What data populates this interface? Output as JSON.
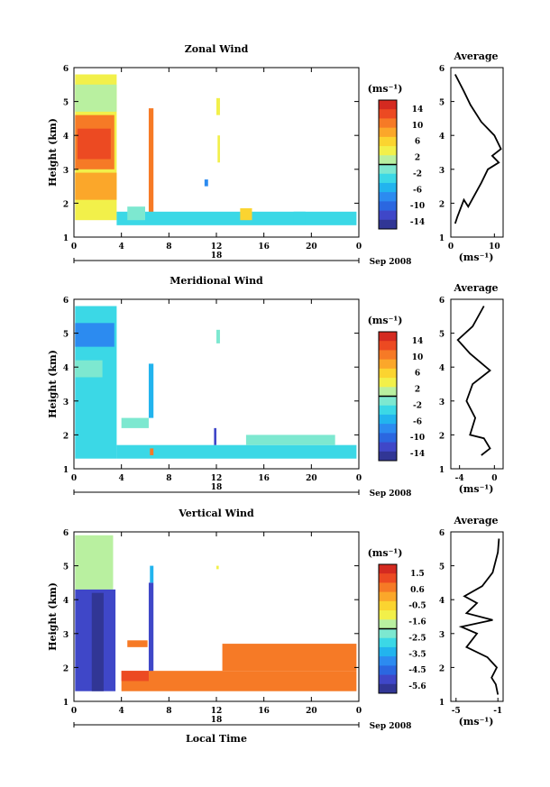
{
  "chart_data": [
    {
      "type": "heatmap",
      "title": "Zonal Wind",
      "ylabel": "Height (km)",
      "xlabel": "",
      "x_ticks": [
        "0",
        "4",
        "8",
        "12",
        "16",
        "20",
        "0"
      ],
      "y_ticks": [
        "1",
        "2",
        "3",
        "4",
        "5",
        "6"
      ],
      "xlim": [
        0,
        24
      ],
      "ylim": [
        1,
        6
      ],
      "date_day": "18",
      "date_label": "Sep 2008",
      "colorbar": {
        "unit": "(ms⁻¹)",
        "ticks": [
          "14",
          "10",
          "6",
          "2",
          "-2",
          "-6",
          "-10",
          "-14"
        ],
        "range": [
          -16,
          16
        ]
      },
      "blocks": [
        {
          "x0": 0.1,
          "x1": 3.6,
          "y0": 1.5,
          "y1": 5.8,
          "v": 4
        },
        {
          "x0": 0.1,
          "x1": 3.4,
          "y0": 3.0,
          "y1": 4.6,
          "v": 11
        },
        {
          "x0": 0.3,
          "x1": 3.1,
          "y0": 3.3,
          "y1": 4.2,
          "v": 13
        },
        {
          "x0": 0.1,
          "x1": 3.6,
          "y0": 2.1,
          "y1": 2.9,
          "v": 7
        },
        {
          "x0": 0.1,
          "x1": 3.6,
          "y0": 4.7,
          "y1": 5.5,
          "v": 2
        },
        {
          "x0": 6.3,
          "x1": 6.7,
          "y0": 1.6,
          "y1": 4.8,
          "v": 10
        },
        {
          "x0": 12.0,
          "x1": 12.3,
          "y0": 4.6,
          "y1": 5.1,
          "v": 3
        },
        {
          "x0": 12.1,
          "x1": 12.3,
          "y0": 3.2,
          "y1": 4.0,
          "v": 4
        },
        {
          "x0": 11.0,
          "x1": 11.3,
          "y0": 2.5,
          "y1": 2.7,
          "v": -8
        },
        {
          "x0": 3.6,
          "x1": 23.8,
          "y0": 1.35,
          "y1": 1.75,
          "v": -3
        },
        {
          "x0": 14.0,
          "x1": 15.0,
          "y0": 1.5,
          "y1": 1.85,
          "v": 6
        },
        {
          "x0": 4.5,
          "x1": 6.0,
          "y0": 1.5,
          "y1": 1.9,
          "v": -1
        },
        {
          "x0": 18.5,
          "x1": 19.5,
          "y0": 1.4,
          "y1": 1.75,
          "v": -3
        }
      ],
      "profile": {
        "title": "Average",
        "xlim": [
          0,
          12
        ],
        "x_ticks": [
          "0",
          "10"
        ],
        "xlabel": "(ms⁻¹)",
        "points": [
          [
            1,
            1.4
          ],
          [
            1.5,
            1.6
          ],
          [
            3,
            2.1
          ],
          [
            4,
            1.9
          ],
          [
            7,
            2.6
          ],
          [
            8.5,
            3.0
          ],
          [
            11,
            3.2
          ],
          [
            9.5,
            3.4
          ],
          [
            11.5,
            3.6
          ],
          [
            10,
            4.0
          ],
          [
            7,
            4.4
          ],
          [
            4.5,
            4.9
          ],
          [
            3,
            5.3
          ],
          [
            1,
            5.8
          ]
        ]
      }
    },
    {
      "type": "heatmap",
      "title": "Meridional Wind",
      "ylabel": "Height (km)",
      "xlabel": "",
      "x_ticks": [
        "0",
        "4",
        "8",
        "12",
        "16",
        "20",
        "0"
      ],
      "y_ticks": [
        "1",
        "2",
        "3",
        "4",
        "5",
        "6"
      ],
      "xlim": [
        0,
        24
      ],
      "ylim": [
        1,
        6
      ],
      "date_day": "18",
      "date_label": "Sep 2008",
      "colorbar": {
        "unit": "(ms⁻¹)",
        "ticks": [
          "14",
          "10",
          "6",
          "2",
          "-2",
          "-6",
          "-10",
          "-14"
        ],
        "range": [
          -16,
          16
        ]
      },
      "blocks": [
        {
          "x0": 0.1,
          "x1": 3.6,
          "y0": 1.3,
          "y1": 5.8,
          "v": -3
        },
        {
          "x0": 0.1,
          "x1": 3.4,
          "y0": 4.6,
          "y1": 5.3,
          "v": -7
        },
        {
          "x0": 0.1,
          "x1": 2.4,
          "y0": 3.7,
          "y1": 4.2,
          "v": -1
        },
        {
          "x0": 6.3,
          "x1": 6.7,
          "y0": 2.5,
          "y1": 4.1,
          "v": -5
        },
        {
          "x0": 3.6,
          "x1": 23.8,
          "y0": 1.3,
          "y1": 1.7,
          "v": -3
        },
        {
          "x0": 6.4,
          "x1": 6.7,
          "y0": 1.4,
          "y1": 1.6,
          "v": 10
        },
        {
          "x0": 11.8,
          "x1": 12.0,
          "y0": 1.7,
          "y1": 2.2,
          "v": -12
        },
        {
          "x0": 12.0,
          "x1": 12.3,
          "y0": 4.7,
          "y1": 5.1,
          "v": -2
        },
        {
          "x0": 4.0,
          "x1": 6.3,
          "y0": 2.2,
          "y1": 2.5,
          "v": -2
        },
        {
          "x0": 14.5,
          "x1": 22.0,
          "y0": 1.7,
          "y1": 2.0,
          "v": -2
        }
      ],
      "profile": {
        "title": "Average",
        "xlim": [
          -5,
          1
        ],
        "x_ticks": [
          "-4",
          "0"
        ],
        "xlabel": "(ms⁻¹)",
        "points": [
          [
            -1.5,
            1.4
          ],
          [
            -0.5,
            1.6
          ],
          [
            -1.2,
            1.9
          ],
          [
            -2.8,
            2.0
          ],
          [
            -2.2,
            2.5
          ],
          [
            -3.2,
            3.0
          ],
          [
            -2.5,
            3.5
          ],
          [
            -0.5,
            3.9
          ],
          [
            -2.8,
            4.4
          ],
          [
            -4.2,
            4.8
          ],
          [
            -2.5,
            5.2
          ],
          [
            -1.2,
            5.8
          ]
        ]
      }
    },
    {
      "type": "heatmap",
      "title": "Vertical Wind",
      "ylabel": "Height (km)",
      "xlabel": "Local Time",
      "x_ticks": [
        "0",
        "4",
        "8",
        "12",
        "16",
        "20",
        "0"
      ],
      "y_ticks": [
        "1",
        "2",
        "3",
        "4",
        "5",
        "6"
      ],
      "xlim": [
        0,
        24
      ],
      "ylim": [
        1,
        6
      ],
      "date_day": "18",
      "date_label": "Sep 2008",
      "colorbar": {
        "unit": "(ms⁻¹)",
        "ticks": [
          "1.5",
          "0.6",
          "-0.5",
          "-1.6",
          "-2.5",
          "-3.5",
          "-4.5",
          "-5.6"
        ],
        "range": [
          -6.1,
          1.9
        ]
      },
      "blocks": [
        {
          "x0": 0.1,
          "x1": 3.3,
          "y0": 4.3,
          "y1": 5.9,
          "v": -1.8
        },
        {
          "x0": 0.1,
          "x1": 3.5,
          "y0": 1.3,
          "y1": 4.3,
          "v": -5.0
        },
        {
          "x0": 1.5,
          "x1": 2.5,
          "y0": 1.3,
          "y1": 4.2,
          "v": -5.7
        },
        {
          "x0": 6.3,
          "x1": 6.7,
          "y0": 1.6,
          "y1": 4.5,
          "v": -5.3
        },
        {
          "x0": 4.0,
          "x1": 23.8,
          "y0": 1.3,
          "y1": 1.9,
          "v": 0.3
        },
        {
          "x0": 4.0,
          "x1": 6.3,
          "y0": 1.6,
          "y1": 1.9,
          "v": 0.8
        },
        {
          "x0": 12.5,
          "x1": 23.8,
          "y0": 1.9,
          "y1": 2.7,
          "v": 0.5
        },
        {
          "x0": 4.5,
          "x1": 6.2,
          "y0": 2.6,
          "y1": 2.8,
          "v": 0.5
        },
        {
          "x0": 6.4,
          "x1": 6.7,
          "y0": 4.5,
          "y1": 5.0,
          "v": -3.6
        },
        {
          "x0": 12.0,
          "x1": 12.2,
          "y0": 4.9,
          "y1": 5.0,
          "v": -1.2
        }
      ],
      "profile": {
        "title": "Average",
        "xlim": [
          -5.5,
          -0.5
        ],
        "x_ticks": [
          "-5",
          "-1"
        ],
        "xlabel": "(ms⁻¹)",
        "points": [
          [
            -1.0,
            1.2
          ],
          [
            -1.2,
            1.5
          ],
          [
            -1.6,
            1.7
          ],
          [
            -1.1,
            2.0
          ],
          [
            -2.0,
            2.3
          ],
          [
            -4.0,
            2.6
          ],
          [
            -3.0,
            3.0
          ],
          [
            -4.5,
            3.2
          ],
          [
            -1.5,
            3.4
          ],
          [
            -4.0,
            3.6
          ],
          [
            -3.0,
            3.9
          ],
          [
            -4.2,
            4.1
          ],
          [
            -2.5,
            4.4
          ],
          [
            -1.5,
            4.8
          ],
          [
            -1.0,
            5.4
          ],
          [
            -0.9,
            5.8
          ]
        ]
      }
    }
  ]
}
